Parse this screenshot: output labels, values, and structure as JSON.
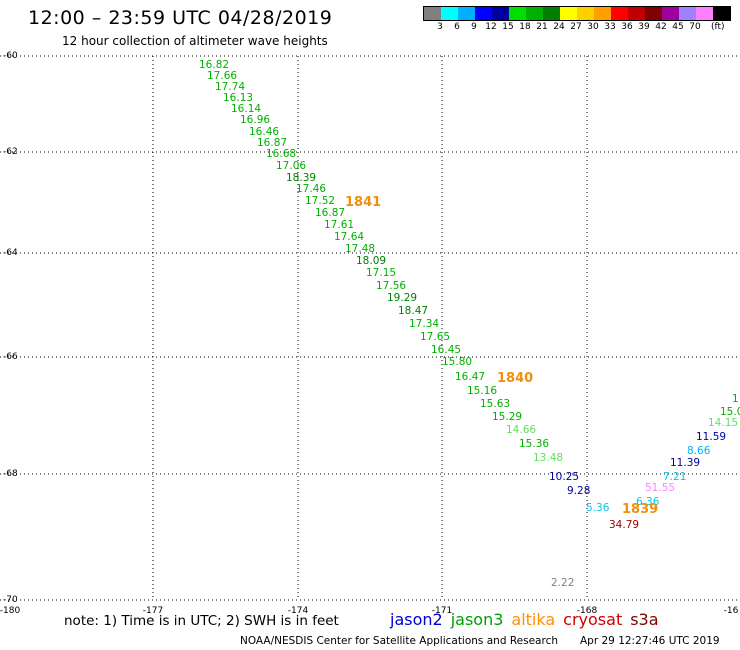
{
  "header": {
    "title": "12:00 – 23:59 UTC 04/28/2019",
    "subtitle": "12 hour collection of altimeter wave heights"
  },
  "legend": {
    "colors": [
      "#808080",
      "#00ffff",
      "#00b0ff",
      "#0000ff",
      "#0000a0",
      "#00e000",
      "#00b000",
      "#008000",
      "#ffff00",
      "#ffd000",
      "#ffa000",
      "#ff0000",
      "#c00000",
      "#800000",
      "#a000a0",
      "#a080ff",
      "#ff80ff",
      "#000000"
    ],
    "labels": [
      "3",
      "6",
      "9",
      "12",
      "15",
      "18",
      "21",
      "24",
      "27",
      "30",
      "33",
      "36",
      "39",
      "42",
      "45",
      "70"
    ],
    "unit": "(ft)"
  },
  "axes": {
    "lat_labels": [
      "-60",
      "-62",
      "-64",
      "-66",
      "-68",
      "-70"
    ],
    "lon_labels": [
      "-180",
      "-177",
      "-174",
      "-171",
      "-168",
      "-16"
    ]
  },
  "pass_labels": [
    "1841",
    "1840",
    "1839"
  ],
  "points": [
    {
      "v": "16.82",
      "c": "#00b000"
    },
    {
      "v": "17.66",
      "c": "#00b000"
    },
    {
      "v": "17.74",
      "c": "#00b000"
    },
    {
      "v": "16.13",
      "c": "#00b000"
    },
    {
      "v": "16.14",
      "c": "#00b000"
    },
    {
      "v": "16.96",
      "c": "#00b000"
    },
    {
      "v": "16.46",
      "c": "#00b000"
    },
    {
      "v": "16.87",
      "c": "#00b000"
    },
    {
      "v": "16.68",
      "c": "#00b000"
    },
    {
      "v": "17.06",
      "c": "#00b000"
    },
    {
      "v": "18.39",
      "c": "#008000"
    },
    {
      "v": "17.46",
      "c": "#00b000"
    },
    {
      "v": "17.52",
      "c": "#00b000"
    },
    {
      "v": "16.87",
      "c": "#00b000"
    },
    {
      "v": "17.61",
      "c": "#00b000"
    },
    {
      "v": "17.64",
      "c": "#00b000"
    },
    {
      "v": "17.48",
      "c": "#00b000"
    },
    {
      "v": "18.09",
      "c": "#008000"
    },
    {
      "v": "17.15",
      "c": "#00b000"
    },
    {
      "v": "17.56",
      "c": "#00b000"
    },
    {
      "v": "19.29",
      "c": "#008000"
    },
    {
      "v": "18.47",
      "c": "#008000"
    },
    {
      "v": "17.34",
      "c": "#00b000"
    },
    {
      "v": "17.65",
      "c": "#00b000"
    },
    {
      "v": "16.45",
      "c": "#00b000"
    },
    {
      "v": "15.80",
      "c": "#00b000"
    },
    {
      "v": "16.47",
      "c": "#00b000"
    },
    {
      "v": "15.16",
      "c": "#00b000"
    },
    {
      "v": "15.63",
      "c": "#00b000"
    },
    {
      "v": "15.29",
      "c": "#00b000"
    },
    {
      "v": "14.66",
      "c": "#60e060"
    },
    {
      "v": "15.36",
      "c": "#00b000"
    },
    {
      "v": "13.48",
      "c": "#60e060"
    },
    {
      "v": "10.25",
      "c": "#0000a0"
    },
    {
      "v": "9.28",
      "c": "#0000a0"
    },
    {
      "v": "5.36",
      "c": "#00c8e8"
    },
    {
      "v": "6.36",
      "c": "#00c8e8"
    },
    {
      "v": "51.55",
      "c": "#ff80ff"
    },
    {
      "v": "34.79",
      "c": "#a00000"
    },
    {
      "v": "7.21",
      "c": "#00c8e8"
    },
    {
      "v": "11.39",
      "c": "#0000a0"
    },
    {
      "v": "8.66",
      "c": "#00b0ff"
    },
    {
      "v": "11.59",
      "c": "#0000a0"
    },
    {
      "v": "14.15",
      "c": "#60e060"
    },
    {
      "v": "15.0",
      "c": "#00b000"
    },
    {
      "v": "1",
      "c": "#00b000"
    },
    {
      "v": "2.22",
      "c": "#808080"
    }
  ],
  "footer": {
    "note": "note: 1) Time is in UTC; 2) SWH is in feet",
    "satellites": [
      {
        "name": "jason2",
        "color": "#0000d0"
      },
      {
        "name": "jason3",
        "color": "#00a000"
      },
      {
        "name": "altika",
        "color": "#ff9000"
      },
      {
        "name": "cryosat",
        "color": "#d00000"
      },
      {
        "name": "s3a",
        "color": "#800000"
      }
    ],
    "credit": "NOAA/NESDIS Center for Satellite Applications and Research",
    "timestamp": "Apr 29 12:27:46 UTC 2019"
  }
}
